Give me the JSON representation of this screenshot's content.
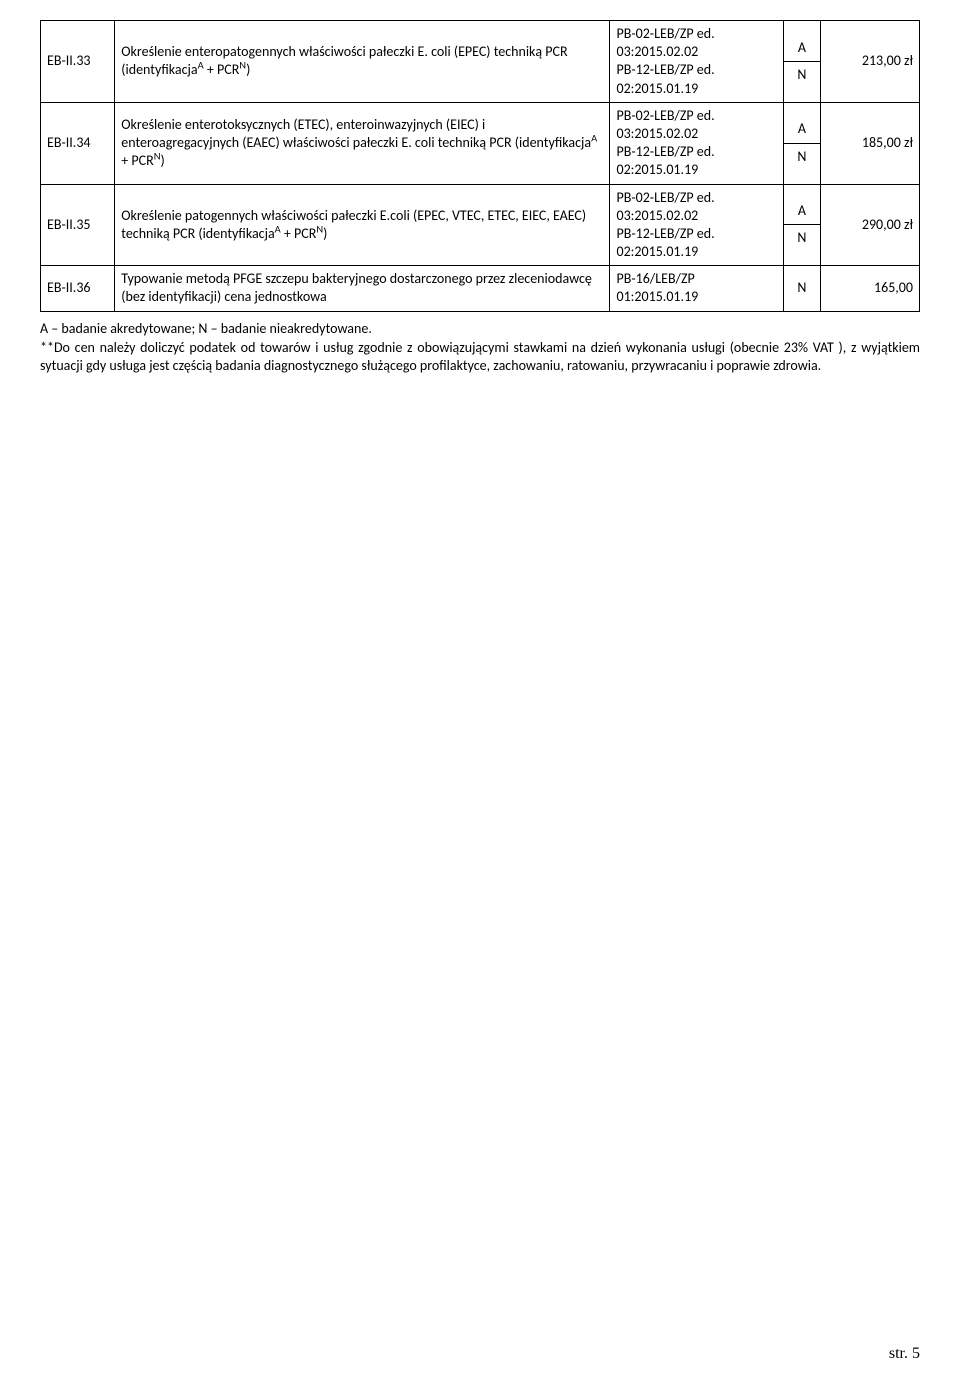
{
  "table": {
    "rows": [
      {
        "code": "EB-II.33",
        "desc_parts": [
          "Określenie enteropatogennych właściwości pałeczki E. coli (EPEC) techniką PCR (identyfikacja",
          "A",
          " + PCR",
          "N",
          ")"
        ],
        "ref_parts": [
          "PB-02-LEB/ZP ed. 03:2015.02.02",
          "PB-12-LEB/ZP ed. 02:2015.01.19"
        ],
        "flags": [
          "A",
          "N"
        ],
        "price": "213,00 zł"
      },
      {
        "code": "EB-II.34",
        "desc_parts": [
          "Określenie enterotoksycznych (ETEC), enteroinwazyjnych (EIEC) i enteroagregacyjnych (EAEC) właściwości pałeczki E. coli techniką PCR (identyfikacja",
          "A",
          " + PCR",
          "N",
          ")"
        ],
        "ref_parts": [
          "PB-02-LEB/ZP ed. 03:2015.02.02",
          "PB-12-LEB/ZP ed. 02:2015.01.19"
        ],
        "flags": [
          "A",
          "N"
        ],
        "price": "185,00 zł"
      },
      {
        "code": "EB-II.35",
        "desc_parts": [
          "Określenie patogennych właściwości pałeczki E.coli (EPEC, VTEC, ETEC, EIEC, EAEC) techniką PCR (identyfikacja",
          "A",
          " + PCR",
          "N",
          ")"
        ],
        "ref_parts": [
          "PB-02-LEB/ZP ed. 03:2015.02.02",
          "PB-12-LEB/ZP ed. 02:2015.01.19"
        ],
        "flags": [
          "A",
          "N"
        ],
        "price": "290,00 zł"
      },
      {
        "code": "EB-II.36",
        "desc_parts": [
          "Typowanie metodą PFGE szczepu bakteryjnego dostarczonego przez zleceniodawcę (bez identyfikacji) cena jednostkowa"
        ],
        "ref_parts": [
          "PB-16/LEB/ZP 01:2015.01.19"
        ],
        "flags": [
          "N"
        ],
        "price": "165,00"
      }
    ]
  },
  "footnote": {
    "line1": "A – badanie akredytowane;  N – badanie nieakredytowane.",
    "line2": "**Do cen należy doliczyć podatek od towarów i usług zgodnie z obowiązującymi stawkami na dzień wykonania usługi (obecnie 23% VAT ), z wyjątkiem sytuacji gdy usługa jest częścią badania diagnostycznego służącego profilaktyce, zachowaniu, ratowaniu, przywracaniu i poprawie zdrowia."
  },
  "page_number": "str. 5",
  "colors": {
    "text": "#000000",
    "background": "#ffffff",
    "border": "#000000"
  },
  "typography": {
    "body_font": "Calibri",
    "body_size_pt": 11,
    "pagenum_font": "Times New Roman",
    "pagenum_size_pt": 12
  }
}
